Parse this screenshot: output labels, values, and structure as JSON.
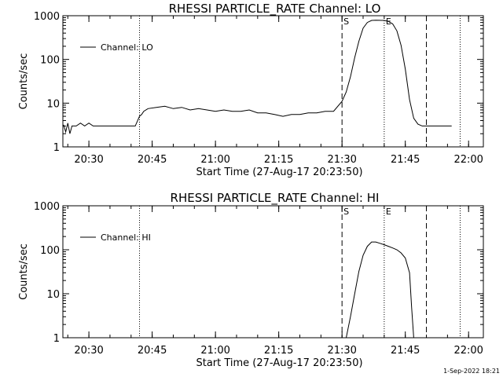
{
  "timestamp": "1-Sep-2022 18:21",
  "chart_data": [
    {
      "type": "line",
      "title": "RHESSI PARTICLE_RATE Channel: LO",
      "xlabel": "Start Time (27-Aug-17 20:23:50)",
      "ylabel": "Counts/sec",
      "yscale": "log",
      "xlim": [
        "20:23:50",
        "22:03:30"
      ],
      "ylim": [
        1,
        1000
      ],
      "xticks": [
        "20:30",
        "20:45",
        "21:00",
        "21:15",
        "21:30",
        "21:45",
        "22:00"
      ],
      "yticks": [
        "1",
        "10",
        "100",
        "1000"
      ],
      "legend": "top-left",
      "series": [
        {
          "name": "Channel: LO",
          "x": [
            "20:24:00",
            "20:24:30",
            "20:25:00",
            "20:25:30",
            "20:26:00",
            "20:27:00",
            "20:28:00",
            "20:29:00",
            "20:30:00",
            "20:31:00",
            "20:32:00",
            "20:34:00",
            "20:36:00",
            "20:38:00",
            "20:40:00",
            "20:41:00",
            "20:42:00",
            "20:42:30",
            "20:43:00",
            "20:44:00",
            "20:46:00",
            "20:48:00",
            "20:50:00",
            "20:52:00",
            "20:54:00",
            "20:56:00",
            "20:58:00",
            "21:00:00",
            "21:02:00",
            "21:04:00",
            "21:06:00",
            "21:08:00",
            "21:10:00",
            "21:12:00",
            "21:14:00",
            "21:16:00",
            "21:18:00",
            "21:20:00",
            "21:22:00",
            "21:24:00",
            "21:26:00",
            "21:28:00",
            "21:30:00",
            "21:31:00",
            "21:32:00",
            "21:33:00",
            "21:34:00",
            "21:35:00",
            "21:36:00",
            "21:37:00",
            "21:38:00",
            "21:40:00",
            "21:41:00",
            "21:42:00",
            "21:43:00",
            "21:44:00",
            "21:45:00",
            "21:46:00",
            "21:47:00",
            "21:48:00",
            "21:49:00",
            "21:50:00",
            "21:52:00",
            "21:54:00",
            "21:56:00"
          ],
          "y": [
            3.2,
            2.2,
            3.5,
            2.0,
            3.0,
            3.0,
            3.5,
            3.0,
            3.5,
            3.0,
            3.0,
            3.0,
            3.0,
            3.0,
            3.0,
            3.0,
            5.0,
            5.5,
            6.5,
            7.5,
            8.0,
            8.5,
            7.5,
            8.0,
            7.0,
            7.5,
            7.0,
            6.5,
            7.0,
            6.5,
            6.5,
            7.0,
            6.0,
            6.0,
            5.5,
            5.0,
            5.5,
            5.5,
            6.0,
            6.0,
            6.5,
            6.5,
            11,
            18,
            40,
            110,
            260,
            520,
            700,
            780,
            790,
            780,
            740,
            650,
            450,
            210,
            60,
            12,
            4.5,
            3.3,
            3.0,
            3.0,
            3.0,
            3.0,
            3.0
          ]
        }
      ],
      "markers": {
        "dotted": [
          "20:42:00",
          "21:40:00",
          "21:58:00"
        ],
        "dashed": [
          "21:30:00",
          "21:50:00"
        ],
        "labels": [
          {
            "text": "S",
            "x": "21:30:00"
          },
          {
            "text": "E",
            "x": "21:40:00"
          }
        ]
      }
    },
    {
      "type": "line",
      "title": "RHESSI PARTICLE_RATE Channel: HI",
      "xlabel": "Start Time (27-Aug-17 20:23:50)",
      "ylabel": "Counts/sec",
      "yscale": "log",
      "xlim": [
        "20:23:50",
        "22:03:30"
      ],
      "ylim": [
        1,
        1000
      ],
      "xticks": [
        "20:30",
        "20:45",
        "21:00",
        "21:15",
        "21:30",
        "21:45",
        "22:00"
      ],
      "yticks": [
        "1",
        "10",
        "100",
        "1000"
      ],
      "legend": "top-left",
      "series": [
        {
          "name": "Channel: HI",
          "x": [
            "21:31:00",
            "21:32:00",
            "21:33:00",
            "21:34:00",
            "21:35:00",
            "21:36:00",
            "21:37:00",
            "21:38:00",
            "21:39:00",
            "21:40:00",
            "21:41:00",
            "21:42:00",
            "21:43:00",
            "21:44:00",
            "21:45:00",
            "21:46:00",
            "21:46:30",
            "21:47:00"
          ],
          "y": [
            1.0,
            3.0,
            10,
            32,
            75,
            120,
            150,
            150,
            140,
            130,
            120,
            110,
            100,
            85,
            65,
            30,
            5,
            1.0
          ]
        }
      ],
      "markers": {
        "dotted": [
          "20:42:00",
          "21:40:00",
          "21:58:00"
        ],
        "dashed": [
          "21:30:00",
          "21:50:00"
        ],
        "labels": [
          {
            "text": "S",
            "x": "21:30:00"
          },
          {
            "text": "E",
            "x": "21:40:00"
          }
        ]
      }
    }
  ]
}
